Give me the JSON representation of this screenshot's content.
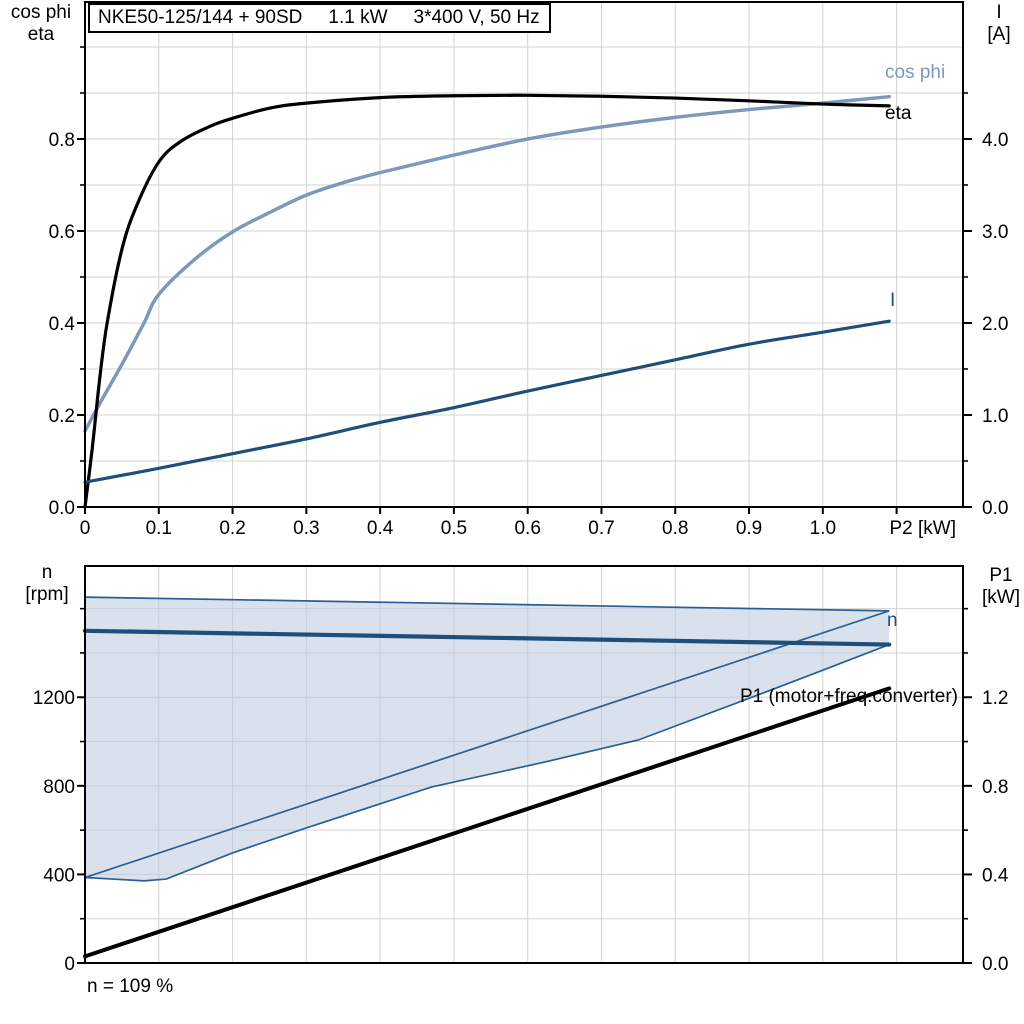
{
  "header": {
    "model": "NKE50-125/144 + 90SD",
    "power": "1.1 kW",
    "supply": "3*400 V, 50 Hz"
  },
  "axis_titles": {
    "top_left_line1": "cos phi",
    "top_left_line2": "eta",
    "top_right_line1": "I",
    "top_right_line2": "[A]",
    "bottom_left_line1": "n",
    "bottom_left_line2": "[rpm]",
    "bottom_right_line1": "P1",
    "bottom_right_line2": "[kW]"
  },
  "curve_labels": {
    "cos_phi": "cos phi",
    "eta": "eta",
    "current": "I",
    "speed": "n",
    "p1": "P1 (motor+freq.converter)"
  },
  "footer": {
    "speed_note": "n = 109 %"
  },
  "colors": {
    "black": "#000000",
    "light_blue": "#7c99ba",
    "dark_blue": "#1f4e79",
    "area_fill": "#b9cadd",
    "area_edge": "#2a5f94",
    "grid": "#d3d3d3",
    "frame": "#000000"
  },
  "chart_data": [
    {
      "type": "line",
      "panel": "top",
      "x": {
        "unit": "P2 [kW]",
        "min": 0,
        "max": 1.19,
        "grid_step": 0.1,
        "ticks": [
          {
            "v": 0.0,
            "label": "0"
          },
          {
            "v": 0.1,
            "label": "0.1"
          },
          {
            "v": 0.2,
            "label": "0.2"
          },
          {
            "v": 0.3,
            "label": "0.3"
          },
          {
            "v": 0.4,
            "label": "0.4"
          },
          {
            "v": 0.5,
            "label": "0.5"
          },
          {
            "v": 0.6,
            "label": "0.6"
          },
          {
            "v": 0.7,
            "label": "0.7"
          },
          {
            "v": 0.8,
            "label": "0.8"
          },
          {
            "v": 0.9,
            "label": "0.9"
          },
          {
            "v": 1.0,
            "label": "1.0"
          },
          {
            "v": 1.1,
            "label": ""
          }
        ]
      },
      "y_left": {
        "title": "cos phi / eta",
        "min": 0,
        "max": 1.0,
        "major": [
          {
            "v": 0.0,
            "label": "0.0"
          },
          {
            "v": 0.2,
            "label": "0.2"
          },
          {
            "v": 0.4,
            "label": "0.4"
          },
          {
            "v": 0.6,
            "label": "0.6"
          },
          {
            "v": 0.8,
            "label": "0.8"
          }
        ],
        "minor": [
          0.1,
          0.3,
          0.5,
          0.7,
          0.9,
          1.0
        ]
      },
      "y_right": {
        "title": "I [A]",
        "min": 0,
        "max": 5.0,
        "major": [
          {
            "v": 0.0,
            "label": "0.0"
          },
          {
            "v": 1.0,
            "label": "1.0"
          },
          {
            "v": 2.0,
            "label": "2.0"
          },
          {
            "v": 3.0,
            "label": "3.0"
          },
          {
            "v": 4.0,
            "label": "4.0"
          }
        ],
        "minor": [
          0.5,
          1.5,
          2.5,
          3.5,
          4.5
        ]
      },
      "series": [
        {
          "name": "cos phi",
          "axis": "left",
          "color_key": "light_blue",
          "width": 3.5,
          "smooth": true,
          "points": [
            [
              0,
              0.165
            ],
            [
              0.02,
              0.225
            ],
            [
              0.05,
              0.31
            ],
            [
              0.08,
              0.4
            ],
            [
              0.1,
              0.462
            ],
            [
              0.15,
              0.54
            ],
            [
              0.2,
              0.598
            ],
            [
              0.25,
              0.64
            ],
            [
              0.3,
              0.678
            ],
            [
              0.35,
              0.705
            ],
            [
              0.4,
              0.727
            ],
            [
              0.5,
              0.765
            ],
            [
              0.6,
              0.8
            ],
            [
              0.7,
              0.826
            ],
            [
              0.8,
              0.847
            ],
            [
              0.9,
              0.864
            ],
            [
              1.0,
              0.878
            ],
            [
              1.09,
              0.892
            ]
          ]
        },
        {
          "name": "eta",
          "axis": "left",
          "color_key": "black",
          "width": 3.2,
          "smooth": true,
          "points": [
            [
              0,
              0.0
            ],
            [
              0.01,
              0.13
            ],
            [
              0.02,
              0.28
            ],
            [
              0.03,
              0.4
            ],
            [
              0.05,
              0.56
            ],
            [
              0.07,
              0.655
            ],
            [
              0.1,
              0.75
            ],
            [
              0.13,
              0.795
            ],
            [
              0.17,
              0.828
            ],
            [
              0.2,
              0.845
            ],
            [
              0.25,
              0.867
            ],
            [
              0.3,
              0.878
            ],
            [
              0.4,
              0.89
            ],
            [
              0.5,
              0.894
            ],
            [
              0.6,
              0.895
            ],
            [
              0.7,
              0.893
            ],
            [
              0.8,
              0.889
            ],
            [
              0.9,
              0.883
            ],
            [
              1.0,
              0.876
            ],
            [
              1.09,
              0.872
            ]
          ]
        },
        {
          "name": "I",
          "axis": "right",
          "color_key": "dark_blue",
          "width": 3.2,
          "smooth": true,
          "points": [
            [
              0,
              0.27
            ],
            [
              0.1,
              0.42
            ],
            [
              0.2,
              0.58
            ],
            [
              0.3,
              0.74
            ],
            [
              0.4,
              0.92
            ],
            [
              0.5,
              1.08
            ],
            [
              0.6,
              1.26
            ],
            [
              0.7,
              1.43
            ],
            [
              0.8,
              1.6
            ],
            [
              0.9,
              1.77
            ],
            [
              1.0,
              1.9
            ],
            [
              1.09,
              2.02
            ]
          ]
        }
      ]
    },
    {
      "type": "line+area",
      "panel": "bottom",
      "x": {
        "unit": "",
        "min": 0,
        "max": 1.19,
        "grid_step": 0.1,
        "grid_values": [
          0.1,
          0.2,
          0.3,
          0.4,
          0.5,
          0.6,
          0.7,
          0.8,
          0.9,
          1.0,
          1.1
        ]
      },
      "y_left": {
        "title": "n [rpm]",
        "min": 0,
        "max": 1792,
        "major": [
          {
            "v": 0,
            "label": "0"
          },
          {
            "v": 400,
            "label": "400"
          },
          {
            "v": 800,
            "label": "800"
          },
          {
            "v": 1200,
            "label": "1200"
          }
        ],
        "minor": [
          200,
          600,
          1000,
          1400,
          1600
        ]
      },
      "y_right": {
        "title": "P1 [kW]",
        "min": 0,
        "max": 1.792,
        "major": [
          {
            "v": 0.0,
            "label": "0.0"
          },
          {
            "v": 0.4,
            "label": "0.4"
          },
          {
            "v": 0.8,
            "label": "0.8"
          },
          {
            "v": 1.2,
            "label": "1.2"
          }
        ],
        "minor": [
          0.2,
          0.6,
          1.0,
          1.4,
          1.6
        ]
      },
      "series": [
        {
          "name": "speed range envelope",
          "type": "area",
          "axis": "left",
          "top_points": [
            [
              0,
              1652
            ],
            [
              1.09,
              1590
            ]
          ],
          "bottom_points": [
            [
              0,
              386
            ],
            [
              0.08,
              371
            ],
            [
              0.11,
              379
            ],
            [
              0.2,
              497
            ],
            [
              0.3,
              610
            ],
            [
              0.47,
              795
            ],
            [
              0.62,
              905
            ],
            [
              0.75,
              1007
            ],
            [
              0.9,
              1195
            ],
            [
              1.0,
              1322
            ],
            [
              1.09,
              1438
            ]
          ]
        },
        {
          "name": "n",
          "type": "line",
          "axis": "left",
          "color_key": "dark_blue",
          "width": 4.2,
          "points": [
            [
              0,
              1500
            ],
            [
              1.09,
              1438
            ]
          ]
        },
        {
          "name": "P1 (motor+freq.converter)",
          "type": "line",
          "axis": "right",
          "color_key": "black",
          "width": 4,
          "points": [
            [
              0,
              0.03
            ],
            [
              1.09,
              1.24
            ]
          ]
        }
      ]
    }
  ]
}
